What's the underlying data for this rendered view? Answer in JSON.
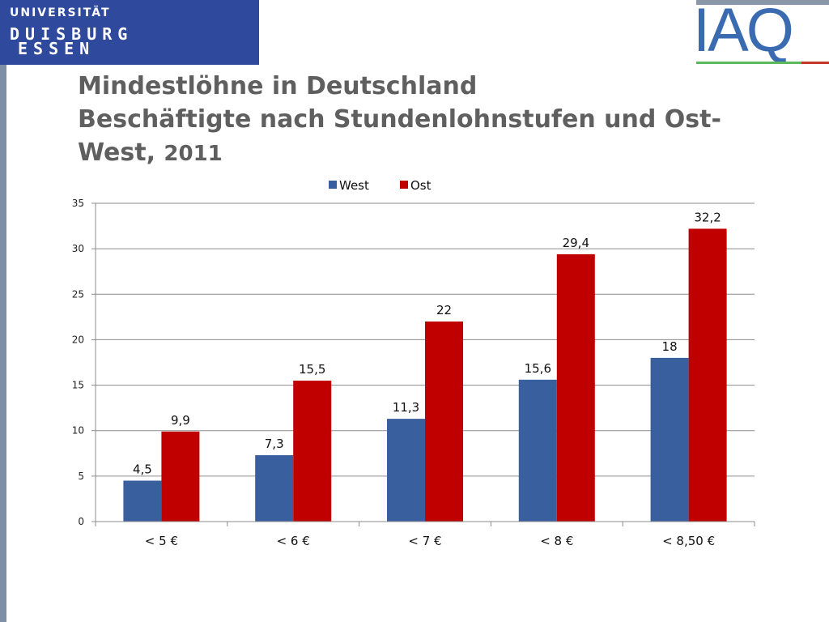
{
  "header": {
    "university_logo": {
      "line1": "UNIVERSITÄT",
      "line2": "DUISBURG",
      "line3": "ESSEN"
    },
    "institute_logo": "IAQ",
    "title_line1": "Mindestlöhne in Deutschland",
    "title_line2": "Beschäftigte nach Stundenlohnstufen und Ost-",
    "title_line3": "West, ",
    "title_year": "2011"
  },
  "colors": {
    "west": "#3a5f9e",
    "ost": "#c00000",
    "grid": "#8c8c8c",
    "title": "#5f5f5f"
  },
  "chart_data": {
    "type": "bar",
    "categories": [
      "< 5 €",
      "< 6 €",
      "< 7 €",
      "< 8 €",
      "< 8,50 €"
    ],
    "series": [
      {
        "name": "West",
        "values": [
          4.5,
          7.3,
          11.3,
          15.6,
          18
        ],
        "labels": [
          "4,5",
          "7,3",
          "11,3",
          "15,6",
          "18"
        ]
      },
      {
        "name": "Ost",
        "values": [
          9.9,
          15.5,
          22,
          29.4,
          32.2
        ],
        "labels": [
          "9,9",
          "15,5",
          "22",
          "29,4",
          "32,2"
        ]
      }
    ],
    "yticks": [
      "0",
      "5",
      "10",
      "15",
      "20",
      "25",
      "30",
      "35"
    ],
    "ylim": [
      0,
      35
    ],
    "grid": true,
    "legend": "top-center"
  }
}
